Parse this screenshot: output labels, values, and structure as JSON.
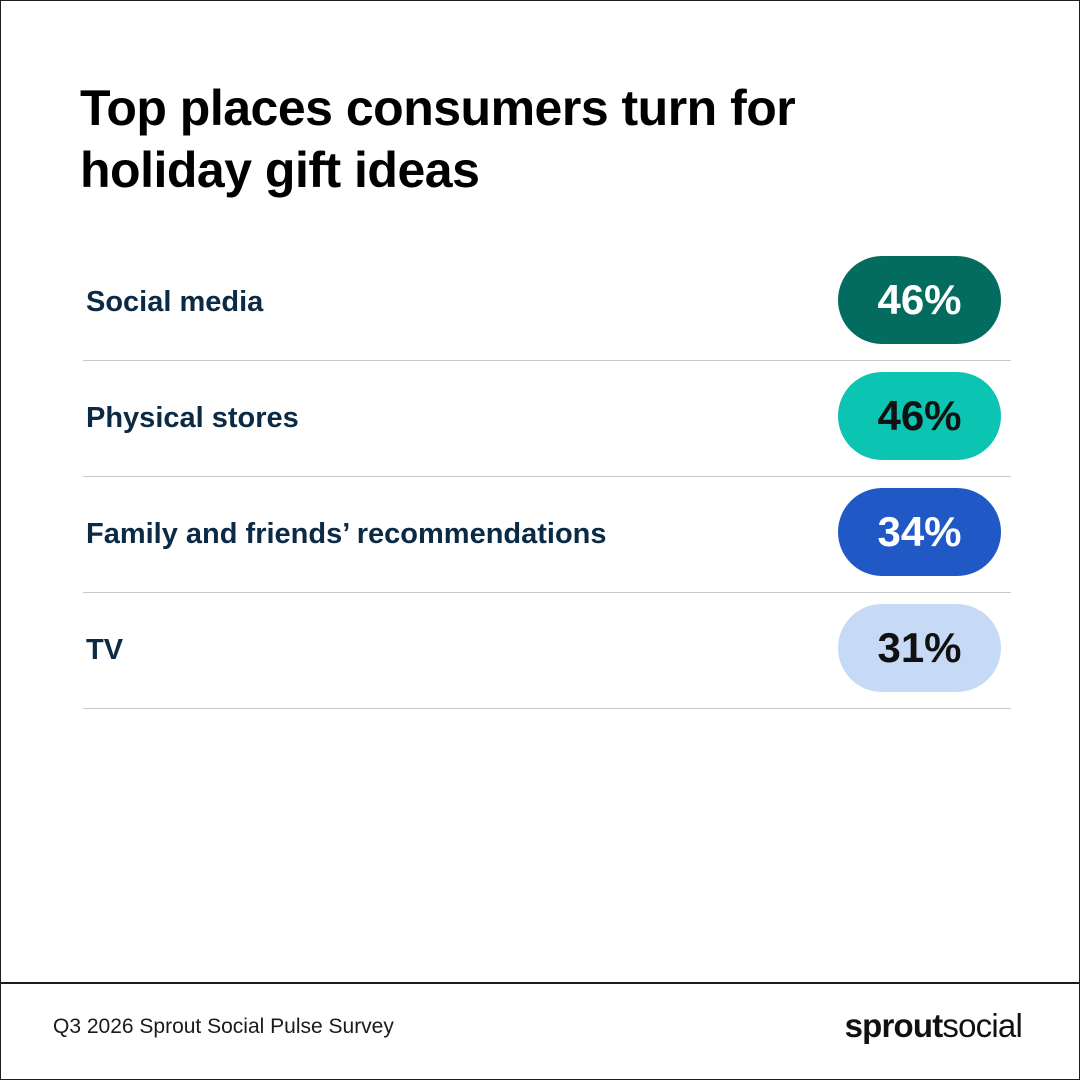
{
  "chart_data": {
    "type": "table",
    "title": "Top places consumers turn for holiday gift ideas",
    "categories": [
      "Social media",
      "Physical stores",
      "Family and friends’ recommendations",
      "TV"
    ],
    "values": [
      46,
      46,
      34,
      31
    ],
    "value_labels": [
      "46%",
      "46%",
      "34%",
      "31%"
    ],
    "unit": "%",
    "pill_colors": [
      "#046b5f",
      "#0cc4b2",
      "#2058c6",
      "#c7daf5"
    ],
    "pill_text_colors": [
      "#ffffff",
      "#111111",
      "#ffffff",
      "#111111"
    ]
  },
  "footer": {
    "source": "Q3 2026 Sprout Social Pulse Survey",
    "logo_bold": "sprout",
    "logo_light": "social"
  },
  "colors": {
    "label_text": "#0b2a45",
    "divider": "#c8c8c8"
  }
}
